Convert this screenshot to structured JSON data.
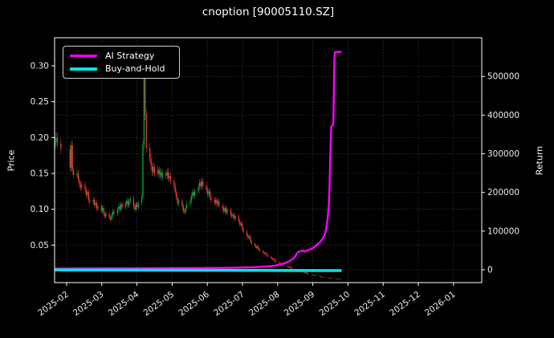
{
  "figure": {
    "background_color": "#000000",
    "text_color": "#ffffff",
    "grid_color": "#4a4a4a",
    "spine_color": "#ffffff"
  },
  "legend": {
    "position": "upper-left",
    "items": [
      {
        "label": "AI Strategy",
        "color": "#ff00ff",
        "thickness": 3
      },
      {
        "label": "Buy-and-Hold",
        "color": "#00e5e6",
        "thickness": 4
      }
    ]
  },
  "chart_data": {
    "type": "candlestick+line",
    "title": "cnoption [90005110.SZ]",
    "grid": "dotted, both axes",
    "x_axis": {
      "tick_labels": [
        "2025-02",
        "2025-03",
        "2025-04",
        "2025-05",
        "2025-06",
        "2025-07",
        "2025-08",
        "2025-09",
        "2025-10",
        "2025-11",
        "2025-12",
        "2026-01"
      ],
      "label_rotation_deg": -36
    },
    "left_axis": {
      "label": "Price",
      "tick_values": [
        0.05,
        0.1,
        0.15,
        0.2,
        0.25,
        0.3
      ],
      "tick_labels": [
        "0.05",
        "0.10",
        "0.15",
        "0.20",
        "0.25",
        "0.30"
      ],
      "range": [
        -0.00225,
        0.3392
      ]
    },
    "right_axis": {
      "label": "Return",
      "tick_values": [
        0,
        100000,
        200000,
        300000,
        400000,
        500000
      ],
      "tick_labels": [
        "0",
        "100000",
        "200000",
        "300000",
        "400000",
        "500000"
      ],
      "range": [
        -33230,
        600200
      ]
    },
    "candles": {
      "comment": "daily candles; day offsets measured from 2025-02-01; weekends and the Spring-Festival break (day -4..2) are skipped; open = previous close",
      "start_day": -10,
      "holiday_skip": [
        -4,
        2
      ],
      "first_open": 0.19,
      "up_color": "#00a94f",
      "down_color": "#ef3b2d",
      "closes": [
        0.195,
        0.2,
        0.192,
        0.184,
        0.158,
        0.189,
        0.154,
        0.148,
        0.15,
        0.142,
        0.135,
        0.13,
        0.134,
        0.127,
        0.12,
        0.124,
        0.113,
        0.11,
        0.113,
        0.106,
        0.109,
        0.101,
        0.104,
        0.098,
        0.102,
        0.094,
        0.09,
        0.094,
        0.088,
        0.086,
        0.092,
        0.097,
        0.094,
        0.099,
        0.104,
        0.1,
        0.107,
        0.103,
        0.108,
        0.112,
        0.106,
        0.111,
        0.115,
        0.104,
        0.1,
        0.107,
        0.103,
        0.109,
        0.118,
        0.19,
        0.31,
        0.232,
        0.186,
        0.171,
        0.161,
        0.152,
        0.159,
        0.15,
        0.155,
        0.148,
        0.152,
        0.145,
        0.15,
        0.147,
        0.152,
        0.143,
        0.146,
        0.14,
        0.132,
        0.124,
        0.116,
        0.108,
        0.112,
        0.104,
        0.098,
        0.096,
        0.102,
        0.107,
        0.112,
        0.118,
        0.124,
        0.119,
        0.125,
        0.131,
        0.137,
        0.132,
        0.139,
        0.133,
        0.127,
        0.121,
        0.125,
        0.117,
        0.113,
        0.109,
        0.113,
        0.107,
        0.111,
        0.105,
        0.101,
        0.097,
        0.102,
        0.095,
        0.099,
        0.093,
        0.09,
        0.092,
        0.087,
        0.09,
        0.083,
        0.078,
        0.08,
        0.073,
        0.069,
        0.064,
        0.06,
        0.062,
        0.056,
        0.052,
        0.049,
        0.046,
        0.048,
        0.044,
        0.042,
        0.04,
        0.038,
        0.039,
        0.036,
        0.034,
        0.032,
        0.03,
        0.031,
        0.028,
        0.026,
        0.025,
        0.023,
        0.024,
        0.022,
        0.021,
        0.02,
        0.019,
        0.02,
        0.018,
        0.017,
        0.016,
        0.015,
        0.016,
        0.014,
        0.013,
        0.012,
        0.011,
        0.012,
        0.01,
        0.009,
        0.009,
        0.0085,
        0.008,
        0.0075,
        0.0072,
        0.0065,
        0.006,
        0.0055,
        0.0052,
        0.005,
        0.0045,
        0.0042,
        0.004,
        0.0036,
        0.0034,
        0.0032,
        0.003,
        0.0031,
        0.0029,
        0.003
      ]
    },
    "series": [
      {
        "name": "AI Strategy",
        "axis": "right",
        "color": "#ff00ff",
        "width": 2.4,
        "points": [
          [
            -10,
            3000
          ],
          [
            40,
            3500
          ],
          [
            100,
            4200
          ],
          [
            140,
            5000
          ],
          [
            160,
            6500
          ],
          [
            170,
            8000
          ],
          [
            177,
            9500
          ],
          [
            181,
            11000
          ],
          [
            184,
            13000
          ],
          [
            187,
            15500
          ],
          [
            190,
            18500
          ],
          [
            193,
            22500
          ],
          [
            195,
            27000
          ],
          [
            197,
            31000
          ],
          [
            199,
            40000
          ],
          [
            200,
            45000
          ],
          [
            202,
            47500
          ],
          [
            205,
            49500
          ],
          [
            206,
            47500
          ],
          [
            208,
            49000
          ],
          [
            209,
            51000
          ],
          [
            212,
            54000
          ],
          [
            214,
            58000
          ],
          [
            216,
            63000
          ],
          [
            219,
            70000
          ],
          [
            221,
            78000
          ],
          [
            223,
            88000
          ],
          [
            224,
            96000
          ],
          [
            225,
            112000
          ],
          [
            226,
            135000
          ],
          [
            227,
            170000
          ],
          [
            227.6,
            220000
          ],
          [
            228.2,
            290000
          ],
          [
            228.7,
            348000
          ],
          [
            229.1,
            371000
          ],
          [
            230.5,
            374500
          ],
          [
            230.9,
            383000
          ],
          [
            231.3,
            460000
          ],
          [
            231.7,
            545000
          ],
          [
            232.2,
            563000
          ],
          [
            238,
            564000
          ]
        ]
      },
      {
        "name": "Buy-and-Hold",
        "axis": "right",
        "color": "#00e5e6",
        "width": 3.6,
        "points": [
          [
            -10,
            -500
          ],
          [
            238,
            -2000
          ]
        ]
      }
    ]
  }
}
